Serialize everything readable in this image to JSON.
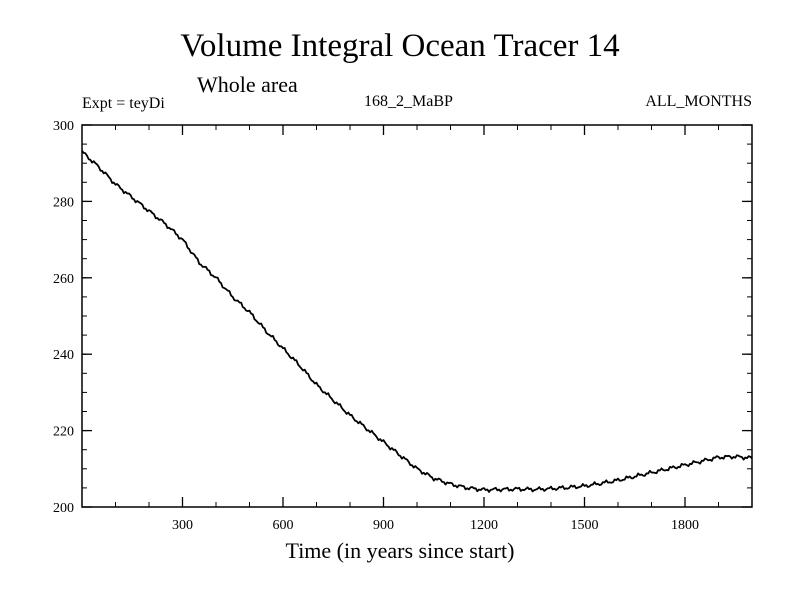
{
  "chart_data": {
    "type": "line",
    "title": "Volume Integral Ocean Tracer 14",
    "subtitle": "Whole area",
    "annotations": {
      "left": "Expt = teyDi",
      "center": "168_2_MaBP",
      "right": "ALL_MONTHS"
    },
    "xlabel": "Time (in years since start)",
    "ylabel": "",
    "xlim": [
      0,
      2000
    ],
    "ylim": [
      200,
      300
    ],
    "xticks": [
      300,
      600,
      900,
      1200,
      1500,
      1800
    ],
    "yticks": [
      200,
      220,
      240,
      260,
      280,
      300
    ],
    "series": [
      {
        "name": "Volume Integral Ocean Tracer 14",
        "color": "#000000",
        "x": [
          0,
          50,
          100,
          150,
          200,
          250,
          300,
          350,
          400,
          450,
          500,
          550,
          600,
          650,
          700,
          750,
          800,
          850,
          900,
          950,
          1000,
          1050,
          1100,
          1150,
          1200,
          1250,
          1300,
          1350,
          1400,
          1450,
          1500,
          1550,
          1600,
          1650,
          1700,
          1750,
          1800,
          1850,
          1900,
          1950,
          2000
        ],
        "y": [
          293,
          289,
          284.5,
          281,
          277.5,
          274,
          270,
          264,
          260,
          255,
          251,
          246,
          241.5,
          237,
          232,
          228,
          224,
          220.5,
          217,
          213.5,
          210,
          207.5,
          206,
          205,
          204.5,
          204.6,
          204.7,
          204.6,
          204.8,
          205.1,
          205.5,
          206.2,
          207,
          208,
          209,
          210,
          211,
          212,
          213,
          213.2,
          212.8
        ]
      }
    ]
  }
}
